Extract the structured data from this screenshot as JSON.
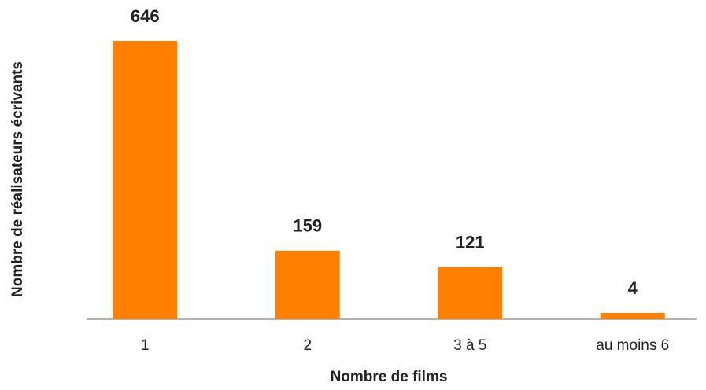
{
  "chart_data": {
    "type": "bar",
    "x_label": "Nombre de films",
    "y_label": "Nombre de réalisateurs écrivants",
    "categories": [
      "1",
      "2",
      "3 à 5",
      "au moins 6"
    ],
    "values": [
      646,
      159,
      121,
      4
    ],
    "color": "#ff7f00"
  }
}
